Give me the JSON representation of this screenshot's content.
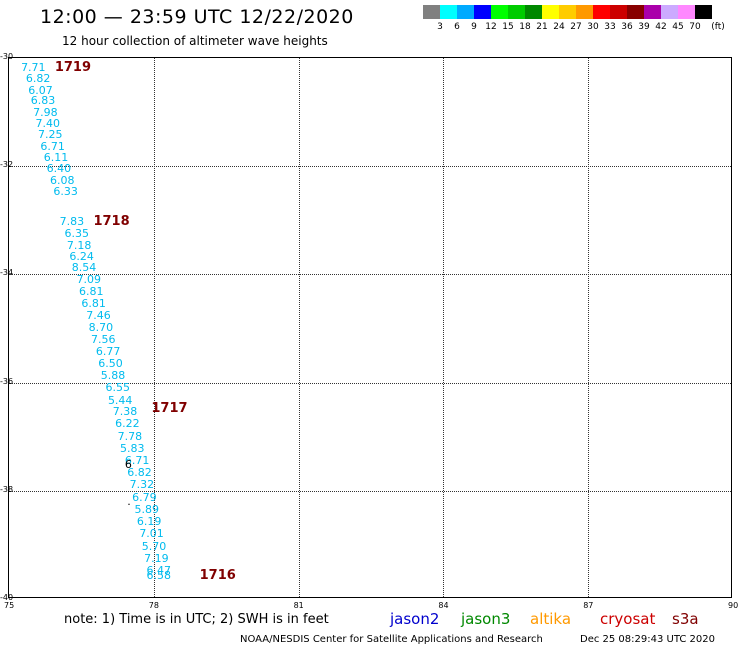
{
  "header": {
    "title": "12:00 — 23:59 UTC 12/22/2020",
    "subtitle": "12 hour collection of altimeter wave heights"
  },
  "colorbar": {
    "unit": "(ft)",
    "colors": [
      "#808080",
      "#00ffff",
      "#00aaff",
      "#0000ff",
      "#00ff00",
      "#00cc00",
      "#008800",
      "#ffff00",
      "#ffcc00",
      "#ff9900",
      "#ff0000",
      "#cc0000",
      "#880000",
      "#aa00aa",
      "#ccaaff",
      "#ff88ff",
      "#000000"
    ],
    "ticks": [
      "3",
      "6",
      "9",
      "12",
      "15",
      "18",
      "21",
      "24",
      "27",
      "30",
      "33",
      "36",
      "39",
      "42",
      "45",
      "70"
    ]
  },
  "map": {
    "lon_range": [
      75,
      90
    ],
    "lat_range": [
      -40,
      -30
    ],
    "lon_ticks": [
      "75",
      "78",
      "81",
      "84",
      "87",
      "90"
    ],
    "lat_ticks": [
      "-30",
      "-32",
      "-34",
      "-36",
      "-38",
      "-40"
    ],
    "wave_color": "#00bbee",
    "time_color": "#800000",
    "wave_heights": [
      {
        "lon": 75.25,
        "lat": -30.08,
        "value": "7.71"
      },
      {
        "lon": 75.35,
        "lat": -30.28,
        "value": "6.82"
      },
      {
        "lon": 75.4,
        "lat": -30.49,
        "value": "6.07"
      },
      {
        "lon": 75.45,
        "lat": -30.69,
        "value": "6.83"
      },
      {
        "lon": 75.5,
        "lat": -30.9,
        "value": "7.98"
      },
      {
        "lon": 75.55,
        "lat": -31.1,
        "value": "7.40"
      },
      {
        "lon": 75.6,
        "lat": -31.31,
        "value": "7.25"
      },
      {
        "lon": 75.65,
        "lat": -31.53,
        "value": "6.71"
      },
      {
        "lon": 75.72,
        "lat": -31.74,
        "value": "6.11"
      },
      {
        "lon": 75.78,
        "lat": -31.95,
        "value": "6.40"
      },
      {
        "lon": 75.85,
        "lat": -32.16,
        "value": "6.08"
      },
      {
        "lon": 75.92,
        "lat": -32.36,
        "value": "6.33"
      },
      {
        "lon": 76.05,
        "lat": -32.92,
        "value": "7.83"
      },
      {
        "lon": 76.15,
        "lat": -33.14,
        "value": "6.35"
      },
      {
        "lon": 76.2,
        "lat": -33.36,
        "value": "7.18"
      },
      {
        "lon": 76.25,
        "lat": -33.57,
        "value": "6.24"
      },
      {
        "lon": 76.3,
        "lat": -33.78,
        "value": "8.54"
      },
      {
        "lon": 76.4,
        "lat": -34.0,
        "value": "7.09"
      },
      {
        "lon": 76.45,
        "lat": -34.21,
        "value": "6.81"
      },
      {
        "lon": 76.5,
        "lat": -34.43,
        "value": "6.81"
      },
      {
        "lon": 76.6,
        "lat": -34.66,
        "value": "7.46"
      },
      {
        "lon": 76.65,
        "lat": -34.88,
        "value": "8.70"
      },
      {
        "lon": 76.7,
        "lat": -35.1,
        "value": "7.56"
      },
      {
        "lon": 76.8,
        "lat": -35.32,
        "value": "6.77"
      },
      {
        "lon": 76.85,
        "lat": -35.55,
        "value": "6.50"
      },
      {
        "lon": 76.9,
        "lat": -35.77,
        "value": "5.88"
      },
      {
        "lon": 77.0,
        "lat": -35.99,
        "value": "6.55"
      },
      {
        "lon": 77.05,
        "lat": -36.22,
        "value": "5.44"
      },
      {
        "lon": 77.15,
        "lat": -36.44,
        "value": "7.38"
      },
      {
        "lon": 77.2,
        "lat": -36.66,
        "value": "6.22"
      },
      {
        "lon": 77.25,
        "lat": -36.89,
        "value": "7.78"
      },
      {
        "lon": 77.3,
        "lat": -37.12,
        "value": "5.83"
      },
      {
        "lon": 77.4,
        "lat": -37.34,
        "value": "6.71"
      },
      {
        "lon": 77.45,
        "lat": -37.56,
        "value": "6.82"
      },
      {
        "lon": 77.5,
        "lat": -37.79,
        "value": "7.32"
      },
      {
        "lon": 77.55,
        "lat": -38.02,
        "value": "6.79"
      },
      {
        "lon": 77.6,
        "lat": -38.24,
        "value": "5.89"
      },
      {
        "lon": 77.65,
        "lat": -38.47,
        "value": "6.19"
      },
      {
        "lon": 77.7,
        "lat": -38.69,
        "value": "7.01"
      },
      {
        "lon": 77.75,
        "lat": -38.92,
        "value": "5.70"
      },
      {
        "lon": 77.8,
        "lat": -39.15,
        "value": "7.19"
      },
      {
        "lon": 77.85,
        "lat": -39.37,
        "value": "6.47"
      },
      {
        "lon": 77.85,
        "lat": -39.47,
        "value": "6.58"
      }
    ],
    "time_labels": [
      {
        "lon": 75.95,
        "lat": -30.03,
        "value": "1719"
      },
      {
        "lon": 76.75,
        "lat": -32.88,
        "value": "1718"
      },
      {
        "lon": 77.95,
        "lat": -36.34,
        "value": "1717"
      },
      {
        "lon": 78.95,
        "lat": -39.43,
        "value": "1716"
      }
    ],
    "markers": [
      {
        "lon": 77.4,
        "lat": -37.39,
        "value": "6"
      },
      {
        "lon": 77.45,
        "lat": -38.13,
        "value": "·"
      }
    ]
  },
  "legend": {
    "note": "note: 1) Time is in UTC; 2) SWH is in feet",
    "satellites": [
      {
        "name": "jason2",
        "color": "#0000cc"
      },
      {
        "name": "jason3",
        "color": "#008800"
      },
      {
        "name": "altika",
        "color": "#ff9900"
      },
      {
        "name": "cryosat",
        "color": "#cc0000"
      },
      {
        "name": "s3a",
        "color": "#800000"
      }
    ]
  },
  "footer": {
    "credit": "NOAA/NESDIS Center for Satellite Applications and Research",
    "timestamp": "Dec 25 08:29:43 UTC 2020"
  }
}
